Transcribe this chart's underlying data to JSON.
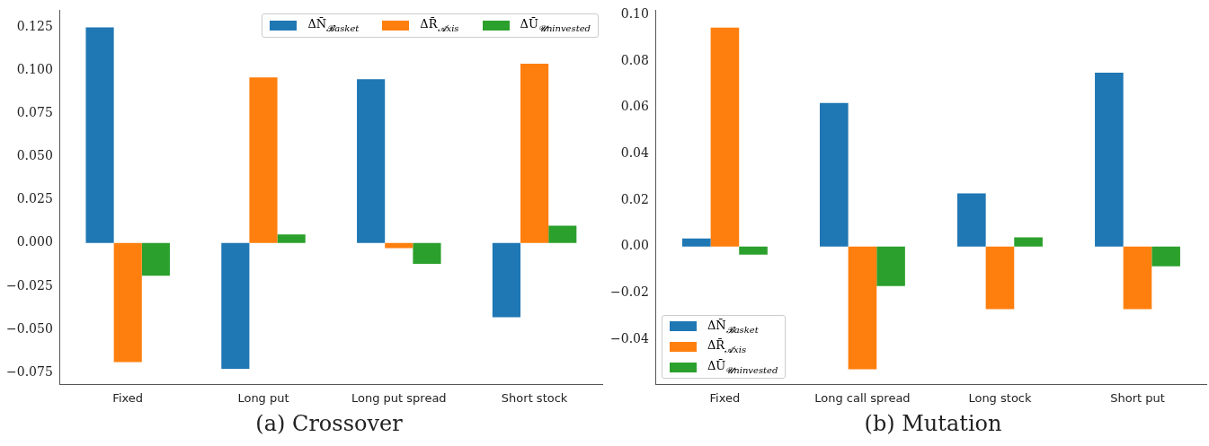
{
  "chart_data": [
    {
      "type": "bar",
      "title": "(a) Crossover",
      "categories": [
        "Fixed",
        "Long put",
        "Long put spread",
        "Short stock"
      ],
      "series": [
        {
          "name": "ΔN̄$_{𝓑asket}$",
          "color": "#1f77b4",
          "values": [
            0.125,
            -0.073,
            0.095,
            -0.043
          ]
        },
        {
          "name": "ΔR̄$_{𝓐xis}$",
          "color": "#ff7f0e",
          "values": [
            -0.069,
            0.096,
            -0.003,
            0.104
          ]
        },
        {
          "name": "ΔŪ$_{𝓤ninvested}$",
          "color": "#2ca02c",
          "values": [
            -0.019,
            0.005,
            -0.012,
            0.01
          ]
        }
      ],
      "ylim": [
        -0.082,
        0.135
      ],
      "yticks": [
        {
          "value": -0.075,
          "label": "−0.075"
        },
        {
          "value": -0.05,
          "label": "−0.050"
        },
        {
          "value": -0.025,
          "label": "−0.025"
        },
        {
          "value": 0,
          "label": "0.000"
        },
        {
          "value": 0.025,
          "label": "0.025"
        },
        {
          "value": 0.05,
          "label": "0.050"
        },
        {
          "value": 0.075,
          "label": "0.075"
        },
        {
          "value": 0.1,
          "label": "0.100"
        },
        {
          "value": 0.125,
          "label": "0.125"
        }
      ],
      "grid": false,
      "legend": "top right"
    },
    {
      "type": "bar",
      "title": "(b) Mutation",
      "categories": [
        "Fixed",
        "Long call spread",
        "Long stock",
        "Short put"
      ],
      "series": [
        {
          "name": "ΔN̄$_{𝓑asket}$",
          "color": "#1f77b4",
          "values": [
            0.0035,
            0.062,
            0.023,
            0.075
          ]
        },
        {
          "name": "ΔR̄$_{𝓐xis}$",
          "color": "#ff7f0e",
          "values": [
            0.0945,
            -0.053,
            -0.027,
            -0.027
          ]
        },
        {
          "name": "ΔŪ$_{𝓤ninvested}$",
          "color": "#2ca02c",
          "values": [
            -0.0035,
            -0.017,
            0.004,
            -0.0085
          ]
        }
      ],
      "ylim": [
        -0.0595,
        0.102
      ],
      "yticks": [
        {
          "value": -0.04,
          "label": "−0.04"
        },
        {
          "value": -0.02,
          "label": "−0.02"
        },
        {
          "value": 0,
          "label": "0.00"
        },
        {
          "value": 0.02,
          "label": "0.02"
        },
        {
          "value": 0.04,
          "label": "0.04"
        },
        {
          "value": 0.06,
          "label": "0.06"
        },
        {
          "value": 0.08,
          "label": "0.08"
        },
        {
          "value": 0.1,
          "label": "0.10"
        }
      ],
      "grid": false,
      "legend": "bottom left"
    }
  ]
}
